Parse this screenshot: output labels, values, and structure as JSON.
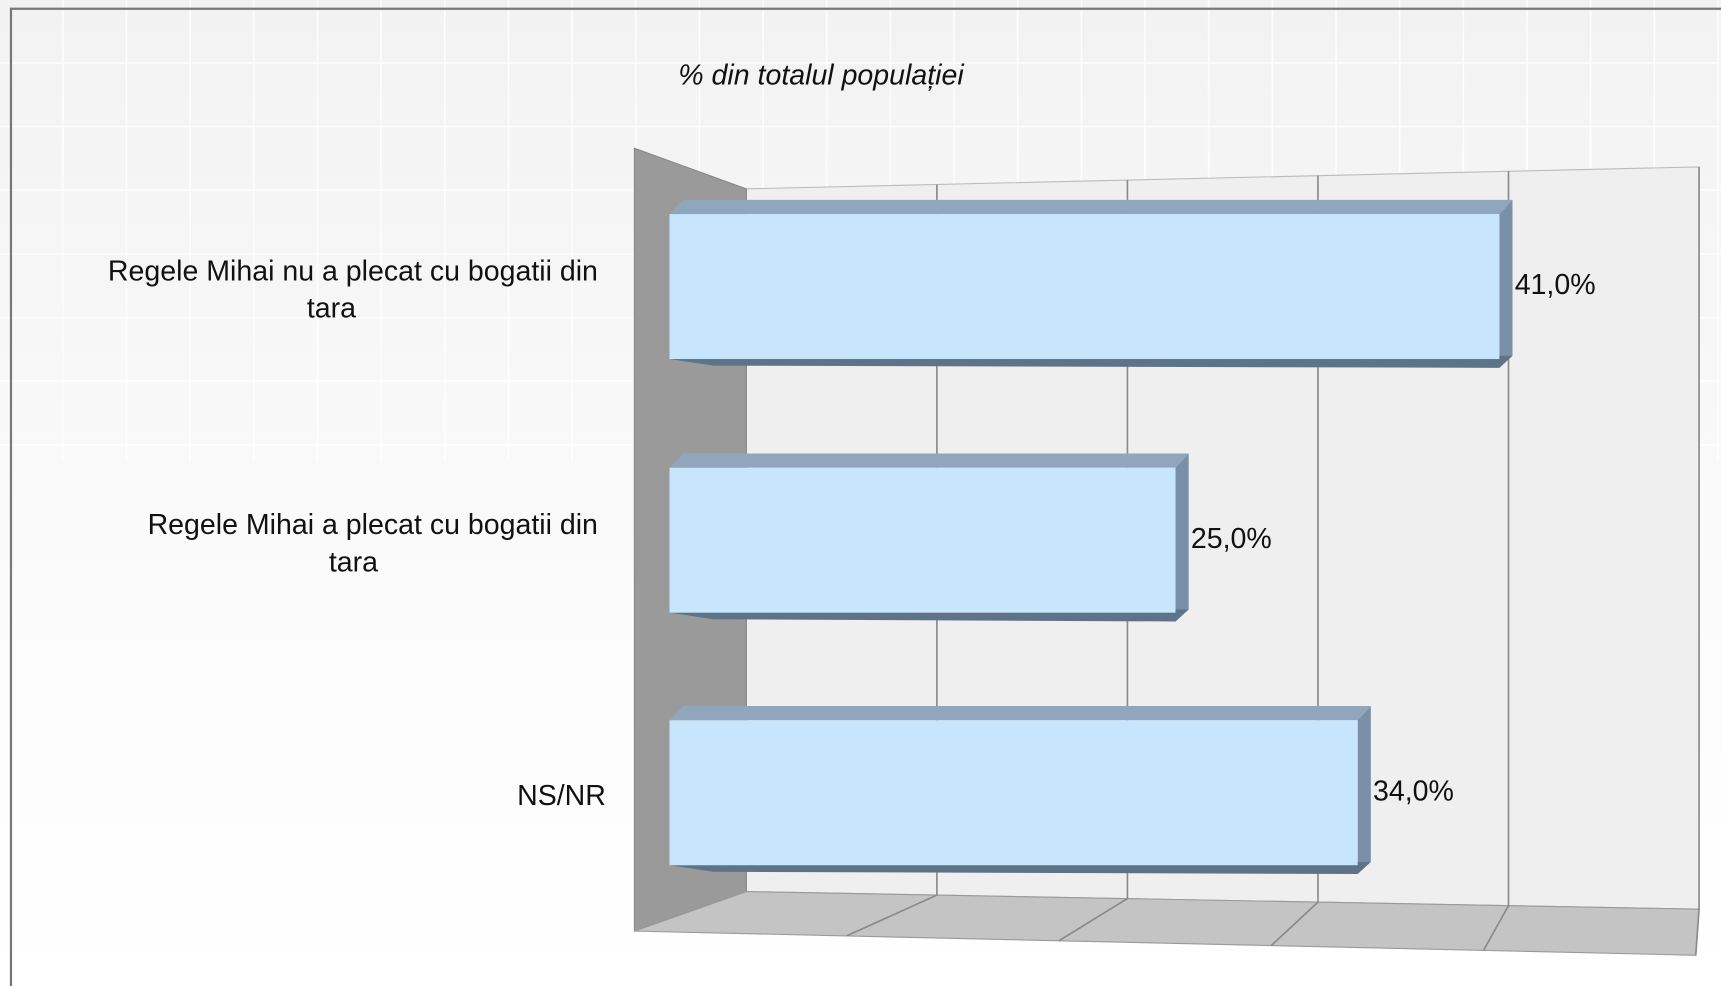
{
  "chart_data": {
    "type": "bar3d_horizontal",
    "title": "% din totalul populației",
    "categories": [
      "Regele Mihai nu a plecat cu bogatii din tara",
      "Regele Mihai a plecat cu bogatii din tara",
      "NS/NR"
    ],
    "values": [
      41,
      25,
      34
    ],
    "value_labels": [
      "41,0%",
      "25,0%",
      "34,0%"
    ],
    "color": "#c8e6fb",
    "xlim": [
      0,
      50
    ],
    "xticks": [
      0,
      10,
      20,
      30,
      40,
      50
    ],
    "grid": true
  }
}
